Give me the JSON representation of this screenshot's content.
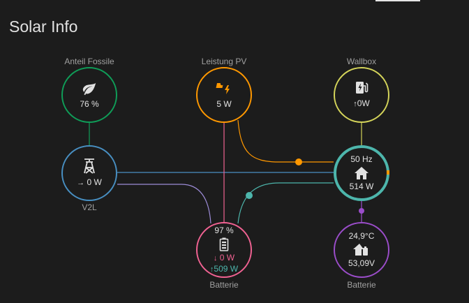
{
  "card": {
    "title": "Solar Info"
  },
  "colors": {
    "background": "#1c1c1c",
    "fossil": "#0f9d58",
    "solar": "#ff9800",
    "wallbox": "#d4d45a",
    "grid": "#488fc2",
    "home": "#4db6ac",
    "battery": "#f06292",
    "battery_node2": "#9b4dca"
  },
  "nodes": {
    "fossil": {
      "label": "Anteil Fossile",
      "icon": "leaf-icon",
      "value": "76 %"
    },
    "solar": {
      "label": "Leistung PV",
      "icon": "solar-power-icon",
      "value": "5 W"
    },
    "wallbox": {
      "label": "Wallbox",
      "icon": "ev-station-icon",
      "arrow": "↑",
      "value": "0W"
    },
    "grid": {
      "label": "V2L",
      "icon": "transmission-tower-icon",
      "arrow": "→",
      "value": "0 W"
    },
    "home": {
      "icon": "home-icon",
      "top": "50 Hz",
      "value": "514 W"
    },
    "battery": {
      "label": "Batterie",
      "icon": "battery-icon",
      "percent": "97 %",
      "in_arrow": "↓",
      "in_value": "0 W",
      "out_arrow": "↑",
      "out_value": "509 W"
    },
    "battery2": {
      "label": "Batterie",
      "icon": "home-battery-icon",
      "top": "24,9°C",
      "value": "53,09V"
    }
  }
}
